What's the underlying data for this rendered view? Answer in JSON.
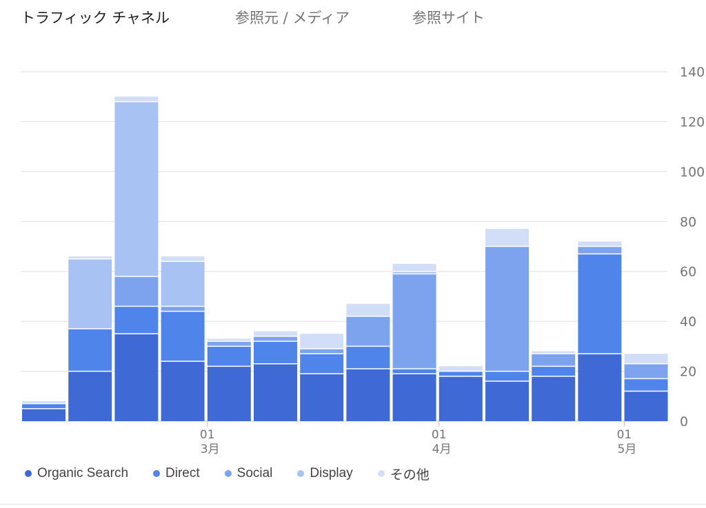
{
  "tabs": [
    {
      "label": "トラフィック チャネル",
      "active": true
    },
    {
      "label": "参照元 / メディア",
      "active": false
    },
    {
      "label": "参照サイト",
      "active": false
    }
  ],
  "colors": {
    "organic": "#3f69d4",
    "direct": "#4f84ea",
    "social": "#7da3ee",
    "display": "#a8c2f4",
    "other": "#d2def8",
    "grid": "#e0e0e0",
    "axis_text": "#757575"
  },
  "chart_data": {
    "type": "bar",
    "stacked": true,
    "ylim": [
      0,
      140
    ],
    "y_ticks": [
      "140",
      "120",
      "100",
      "80",
      "60",
      "40",
      "20",
      "0"
    ],
    "x_tick_labels": [
      {
        "day": "01",
        "month": "3月",
        "after_bar_index": 3
      },
      {
        "day": "01",
        "month": "4月",
        "after_bar_index": 8
      },
      {
        "day": "01",
        "month": "5月",
        "after_bar_index": 12
      }
    ],
    "series": [
      {
        "name": "Organic Search",
        "color": "#3f69d4",
        "values": [
          5,
          20,
          35,
          24,
          22,
          23,
          19,
          21,
          19,
          18,
          16,
          18,
          27,
          12
        ]
      },
      {
        "name": "Direct",
        "color": "#4f84ea",
        "values": [
          2,
          17,
          11,
          20,
          8,
          9,
          8,
          9,
          2,
          2,
          4,
          4,
          40,
          5
        ]
      },
      {
        "name": "Social",
        "color": "#7da3ee",
        "values": [
          0,
          0,
          12,
          2,
          2,
          2,
          2,
          12,
          38,
          0,
          50,
          5,
          3,
          6
        ]
      },
      {
        "name": "Display",
        "color": "#a8c2f4",
        "values": [
          0,
          28,
          70,
          18,
          0,
          0,
          0,
          0,
          1,
          0,
          0,
          0,
          0,
          0
        ]
      },
      {
        "name": "その他",
        "color": "#d2def8",
        "values": [
          1,
          1,
          2,
          2,
          1,
          2,
          6,
          5,
          3,
          2,
          7,
          1,
          2,
          4
        ]
      }
    ]
  },
  "legend": [
    {
      "label": "Organic Search",
      "color": "#3f69d4"
    },
    {
      "label": "Direct",
      "color": "#4f84ea"
    },
    {
      "label": "Social",
      "color": "#7da3ee"
    },
    {
      "label": "Display",
      "color": "#a8c2f4"
    },
    {
      "label": "その他",
      "color": "#d2def8"
    }
  ]
}
